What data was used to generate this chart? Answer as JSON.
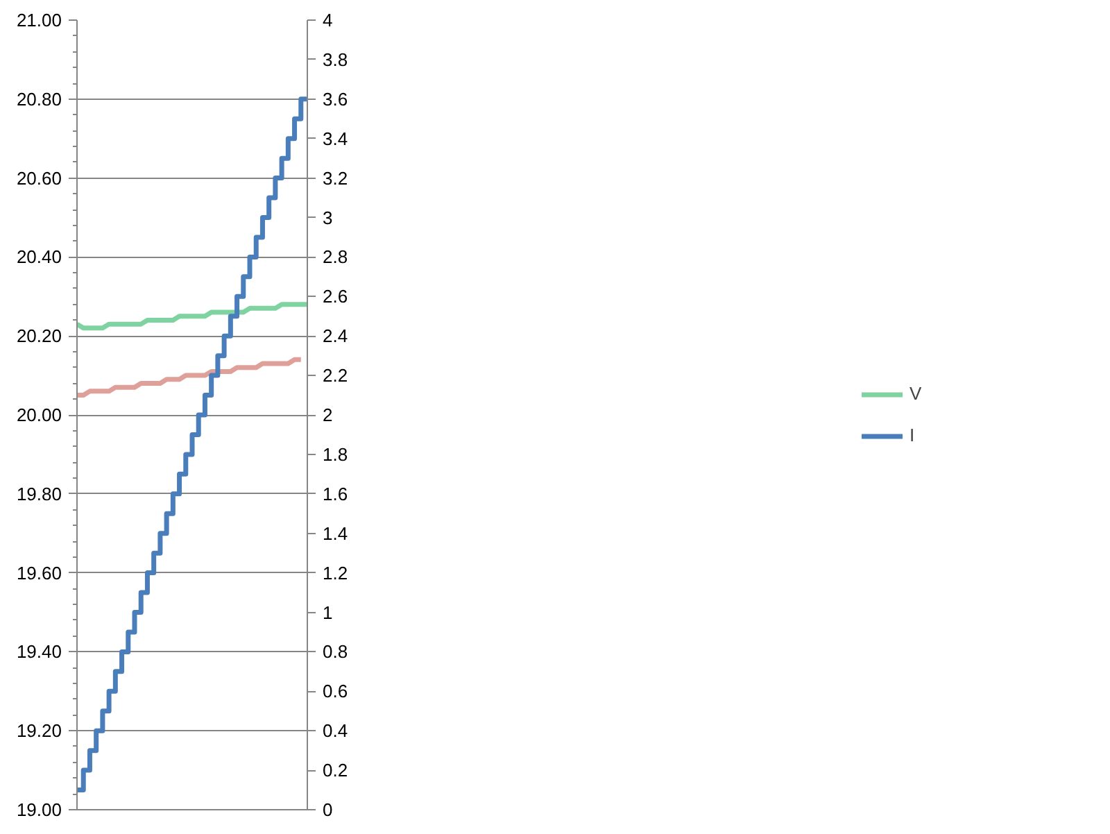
{
  "chart_data": {
    "type": "line",
    "categories": [
      null,
      null,
      null,
      null,
      null,
      null,
      null,
      null,
      null,
      null,
      null,
      null,
      null,
      null,
      null,
      null,
      null,
      null,
      null,
      null,
      null,
      null,
      null,
      null,
      null,
      null,
      null,
      null,
      null,
      null,
      null,
      null,
      null,
      null,
      null,
      null,
      null
    ],
    "series": [
      {
        "name": "V",
        "color": "#7fd3a0",
        "values": [
          20.23,
          20.22,
          20.22,
          20.22,
          20.22,
          20.23,
          20.23,
          20.23,
          20.23,
          20.23,
          20.23,
          20.24,
          20.24,
          20.24,
          20.24,
          20.24,
          20.25,
          20.25,
          20.25,
          20.25,
          20.25,
          20.26,
          20.26,
          20.26,
          20.26,
          20.26,
          20.26,
          20.27,
          20.27,
          20.27,
          20.27,
          20.27,
          20.28,
          20.28,
          20.28,
          20.28,
          20.28
        ]
      },
      {
        "color": "#e0a09a",
        "values": [
          20.05,
          20.05,
          20.06,
          20.06,
          20.06,
          20.06,
          20.07,
          20.07,
          20.07,
          20.07,
          20.08,
          20.08,
          20.08,
          20.08,
          20.09,
          20.09,
          20.09,
          20.1,
          20.1,
          20.1,
          20.1,
          20.11,
          20.11,
          20.11,
          20.11,
          20.12,
          20.12,
          20.12,
          20.12,
          20.13,
          20.13,
          20.13,
          20.13,
          20.13,
          20.14,
          20.14,
          null
        ]
      },
      {
        "name": "I",
        "type": "step",
        "axis": "y2",
        "color": "#4a7ebb",
        "values": [
          0.1,
          0.2,
          0.3,
          0.4,
          0.5,
          0.6,
          0.7,
          0.8,
          0.9,
          1.0,
          1.1,
          1.2,
          1.3,
          1.4,
          1.5,
          1.6,
          1.7,
          1.8,
          1.9,
          2.0,
          2.1,
          2.2,
          2.3,
          2.4,
          2.5,
          2.6,
          2.7,
          2.8,
          2.9,
          3.0,
          3.1,
          3.2,
          3.3,
          3.4,
          3.5,
          3.6,
          3.6
        ]
      }
    ],
    "ylim": [
      19.0,
      21.0
    ],
    "yticks": [
      {
        "value": 19.0,
        "label": "19.00"
      },
      {
        "value": 19.2,
        "label": "19.20"
      },
      {
        "value": 19.4,
        "label": "19.40"
      },
      {
        "value": 19.6,
        "label": "19.60"
      },
      {
        "value": 19.8,
        "label": "19.80"
      },
      {
        "value": 20.0,
        "label": "20.00"
      },
      {
        "value": 20.2,
        "label": "20.20"
      },
      {
        "value": 20.4,
        "label": "20.40"
      },
      {
        "value": 20.6,
        "label": "20.60"
      },
      {
        "value": 20.8,
        "label": "20.80"
      },
      {
        "value": 21.0,
        "label": "21.00"
      }
    ],
    "y2lim": [
      0,
      4
    ],
    "y2ticks": [
      0,
      0.2,
      0.4,
      0.6,
      0.8,
      1,
      1.2,
      1.4,
      1.6,
      1.8,
      2,
      2.2,
      2.4,
      2.6,
      2.8,
      3,
      3.2,
      3.4,
      3.6,
      3.8,
      4
    ],
    "grid": "y",
    "legend": "right",
    "marker": "none",
    "line_style": "solid"
  }
}
